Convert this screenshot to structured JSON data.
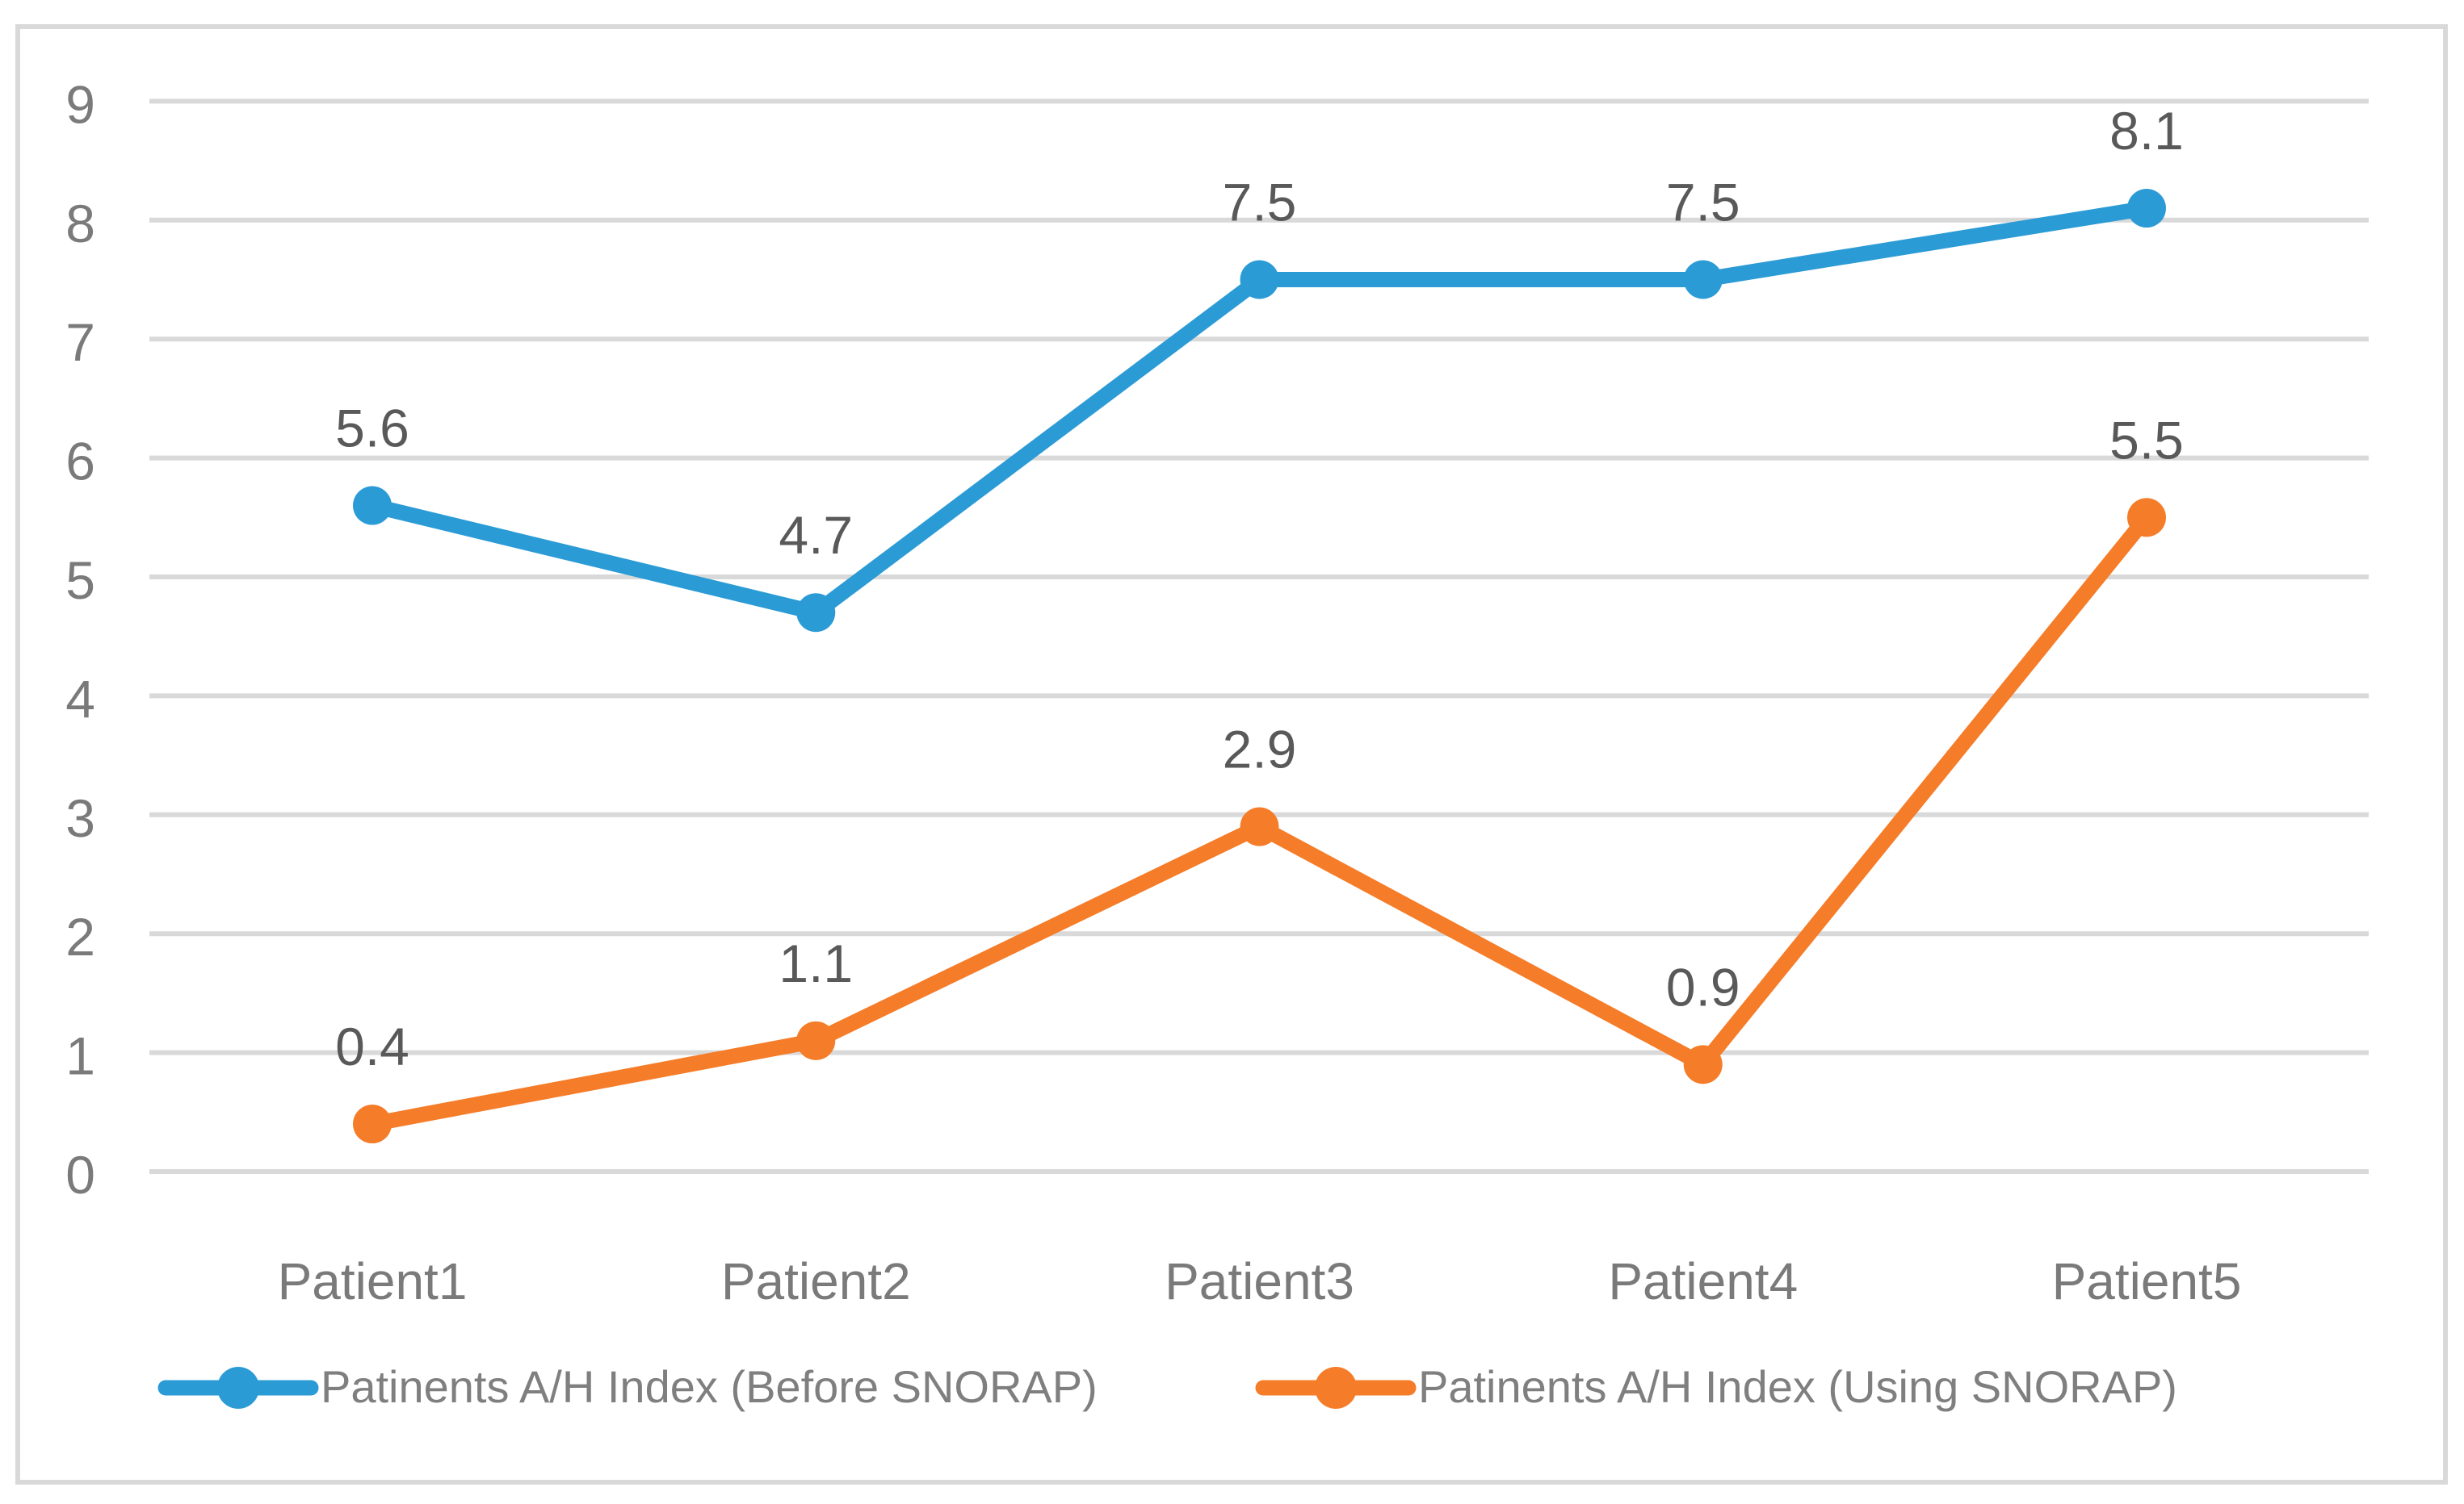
{
  "chart_data": {
    "type": "line",
    "title": "",
    "xlabel": "",
    "ylabel": "",
    "categories": [
      "Patient1",
      "Patient2",
      "Patient3",
      "Patient4",
      "Patient5"
    ],
    "series": [
      {
        "name": "Patinents A/H Index (Before SNORAP)",
        "values": [
          5.6,
          4.7,
          7.5,
          7.5,
          8.1
        ],
        "color": "#2B9BD6"
      },
      {
        "name": "Patinents A/H Index (Using SNORAP)",
        "values": [
          0.4,
          1.1,
          2.9,
          0.9,
          5.5
        ],
        "color": "#F57C28"
      }
    ],
    "ylim": [
      0,
      9
    ],
    "ytick_step": 1,
    "yticks": [
      0,
      1,
      2,
      3,
      4,
      5,
      6,
      7,
      8,
      9
    ],
    "grid": true,
    "data_labels": true,
    "legend_position": "bottom",
    "marker": "circle"
  },
  "style": {
    "grid_color": "#D9D9D9",
    "frame_border_color": "#D9D9D9",
    "tick_label_color": "#7A7A7A",
    "category_label_color": "#7A7A7A",
    "data_label_color": "#595959",
    "legend_text_color": "#7F7F7F",
    "background_color": "#FFFFFF"
  }
}
